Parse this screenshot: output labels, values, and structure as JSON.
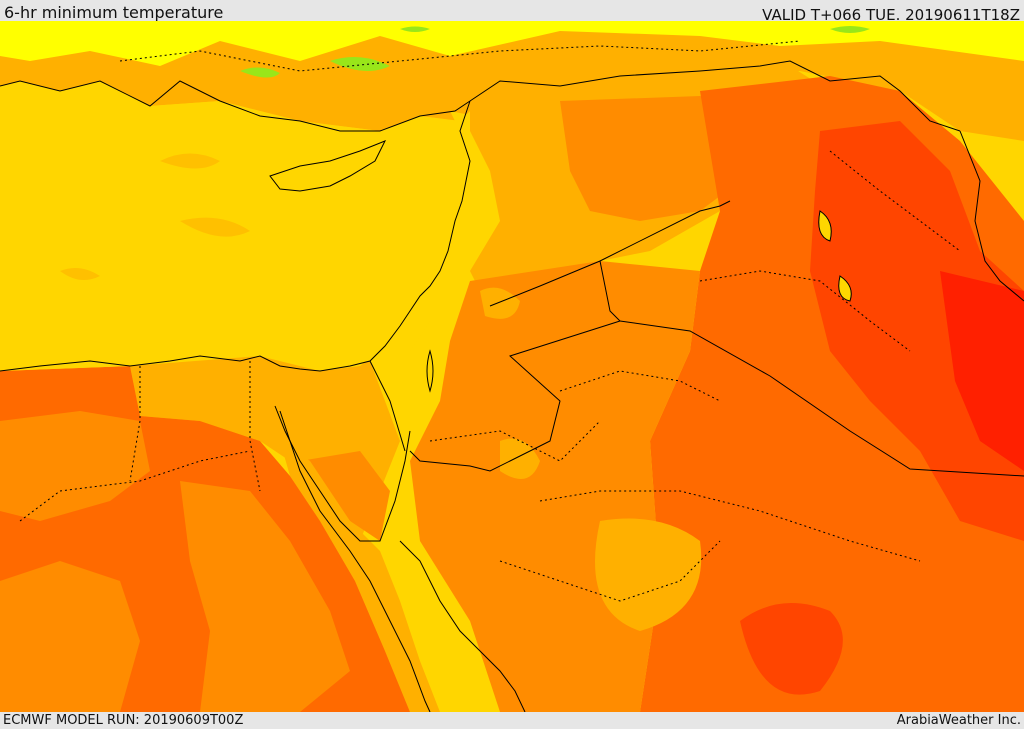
{
  "header": {
    "title": "6-hr minimum temperature",
    "valid_label": "VALID T+066 TUE. 20190611T18Z"
  },
  "footer": {
    "model_run": "ECMWF MODEL RUN: 20190609T00Z",
    "credit": "ArabiaWeather Inc."
  },
  "map": {
    "variable": "6-hr minimum temperature",
    "palette": {
      "green": "#99e619",
      "yellow_green": "#ccf20d",
      "bright_yellow": "#ffff00",
      "yellow": "#ffd600",
      "light_orange": "#ffb000",
      "orange": "#ff8c00",
      "dark_orange": "#ff6a00",
      "red_orange": "#ff4500",
      "red": "#ff2000"
    },
    "coastline_color": "#000000",
    "border_style": "dotted"
  }
}
